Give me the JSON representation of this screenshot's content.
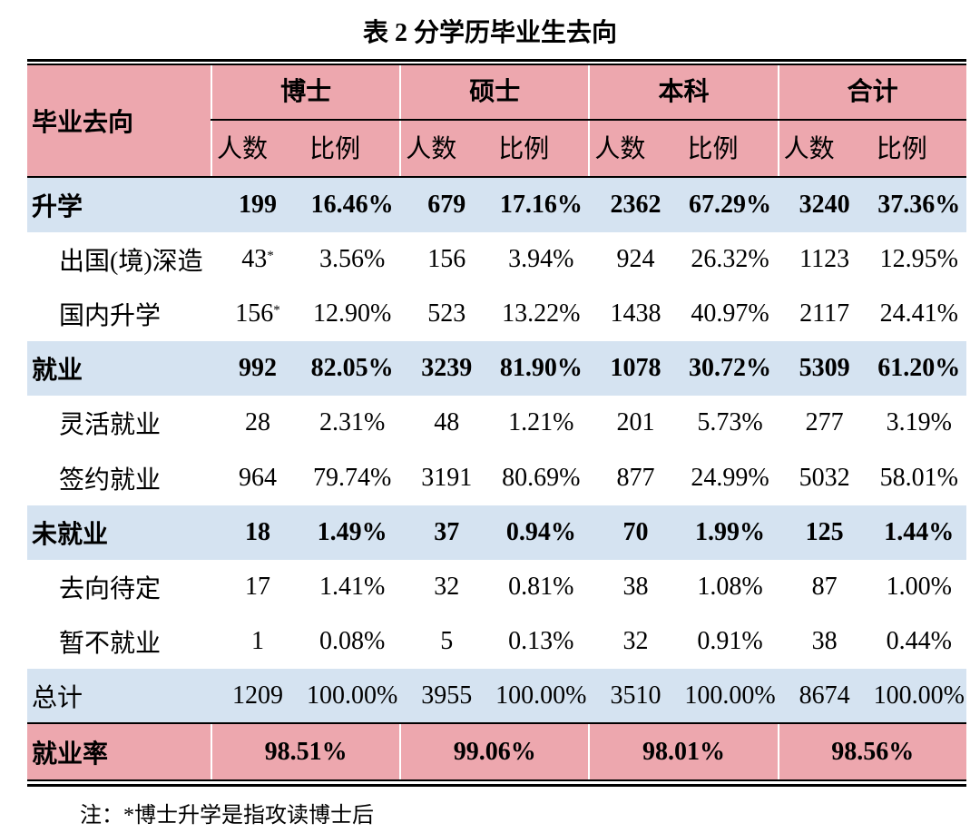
{
  "title": "表 2  分学历毕业生去向",
  "table": {
    "corner": "毕业去向",
    "groups": [
      "博士",
      "硕士",
      "本科",
      "合计"
    ],
    "subheaders": [
      "人数",
      "比例",
      "人数",
      "比例",
      "人数",
      "比例",
      "人数",
      "比例"
    ],
    "rows": [
      [
        "升学",
        "199",
        "16.46%",
        "679",
        "17.16%",
        "2362",
        "67.29%",
        "3240",
        "37.36%"
      ],
      [
        "出国(境)深造",
        {
          "text": "43",
          "sup": "*"
        },
        "3.56%",
        "156",
        "3.94%",
        "924",
        "26.32%",
        "1123",
        "12.95%"
      ],
      [
        "国内升学",
        {
          "text": "156",
          "sup": "*"
        },
        "12.90%",
        "523",
        "13.22%",
        "1438",
        "40.97%",
        "2117",
        "24.41%"
      ],
      [
        "就业",
        "992",
        "82.05%",
        "3239",
        "81.90%",
        "1078",
        "30.72%",
        "5309",
        "61.20%"
      ],
      [
        "灵活就业",
        "28",
        "2.31%",
        "48",
        "1.21%",
        "201",
        "5.73%",
        "277",
        "3.19%"
      ],
      [
        "签约就业",
        "964",
        "79.74%",
        "3191",
        "80.69%",
        "877",
        "24.99%",
        "5032",
        "58.01%"
      ],
      [
        "未就业",
        "18",
        "1.49%",
        "37",
        "0.94%",
        "70",
        "1.99%",
        "125",
        "1.44%"
      ],
      [
        "去向待定",
        "17",
        "1.41%",
        "32",
        "0.81%",
        "38",
        "1.08%",
        "87",
        "1.00%"
      ],
      [
        "暂不就业",
        "1",
        "0.08%",
        "5",
        "0.13%",
        "32",
        "0.91%",
        "38",
        "0.44%"
      ],
      [
        "总计",
        "1209",
        "100.00%",
        "3955",
        "100.00%",
        "3510",
        "100.00%",
        "8674",
        "100.00%"
      ]
    ],
    "footer": {
      "label": "就业率",
      "values": [
        "98.51%",
        "99.06%",
        "98.01%",
        "98.56%"
      ]
    }
  },
  "note": "注：*博士升学是指攻读博士后"
}
